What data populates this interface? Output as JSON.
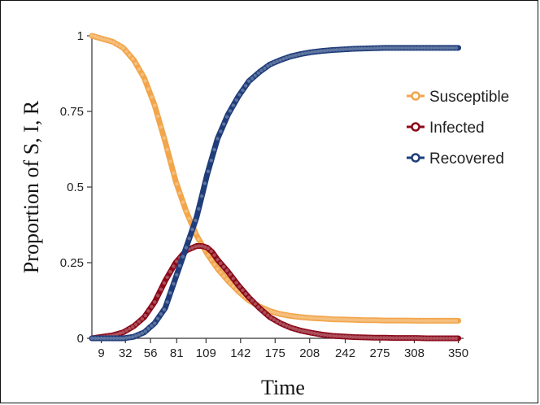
{
  "chart_data": {
    "type": "line",
    "title": "",
    "xlabel": "Time",
    "ylabel": "Proportion of S, I, R",
    "x_tick_labels": [
      "9",
      "32",
      "56",
      "81",
      "109",
      "142",
      "175",
      "208",
      "242",
      "275",
      "308",
      "350"
    ],
    "y_tick_labels": [
      "0",
      "0.25",
      "0.5",
      "0.75",
      "1"
    ],
    "xlim": [
      0,
      355
    ],
    "ylim": [
      0,
      1
    ],
    "grid": false,
    "legend_position": "right",
    "x": [
      0,
      10,
      20,
      30,
      40,
      50,
      60,
      70,
      80,
      90,
      100,
      105,
      110,
      115,
      120,
      130,
      140,
      150,
      160,
      170,
      180,
      190,
      200,
      210,
      220,
      230,
      240,
      250,
      260,
      270,
      280,
      290,
      300,
      310,
      320,
      330,
      340,
      350
    ],
    "series": [
      {
        "name": "Susceptible",
        "color": "#F2A54A",
        "values": [
          1.0,
          0.99,
          0.98,
          0.96,
          0.92,
          0.86,
          0.77,
          0.65,
          0.52,
          0.42,
          0.34,
          0.31,
          0.28,
          0.255,
          0.23,
          0.19,
          0.155,
          0.125,
          0.105,
          0.09,
          0.08,
          0.074,
          0.07,
          0.067,
          0.065,
          0.063,
          0.062,
          0.061,
          0.06,
          0.06,
          0.059,
          0.059,
          0.059,
          0.058,
          0.058,
          0.058,
          0.058,
          0.058
        ]
      },
      {
        "name": "Infected",
        "color": "#8B0A1A",
        "values": [
          0.0,
          0.005,
          0.01,
          0.02,
          0.04,
          0.07,
          0.12,
          0.19,
          0.25,
          0.29,
          0.305,
          0.305,
          0.3,
          0.285,
          0.26,
          0.22,
          0.175,
          0.135,
          0.1,
          0.07,
          0.05,
          0.035,
          0.025,
          0.018,
          0.012,
          0.008,
          0.006,
          0.004,
          0.003,
          0.002,
          0.002,
          0.001,
          0.001,
          0.001,
          0.0,
          0.0,
          0.0,
          0.0
        ]
      },
      {
        "name": "Recovered",
        "color": "#1F3D7A",
        "values": [
          0.0,
          0.0,
          0.0,
          0.0,
          0.005,
          0.02,
          0.05,
          0.1,
          0.2,
          0.3,
          0.4,
          0.47,
          0.54,
          0.6,
          0.66,
          0.74,
          0.8,
          0.85,
          0.88,
          0.905,
          0.92,
          0.932,
          0.94,
          0.946,
          0.95,
          0.953,
          0.955,
          0.957,
          0.958,
          0.959,
          0.96,
          0.96,
          0.96,
          0.96,
          0.96,
          0.96,
          0.96,
          0.96
        ]
      }
    ]
  }
}
